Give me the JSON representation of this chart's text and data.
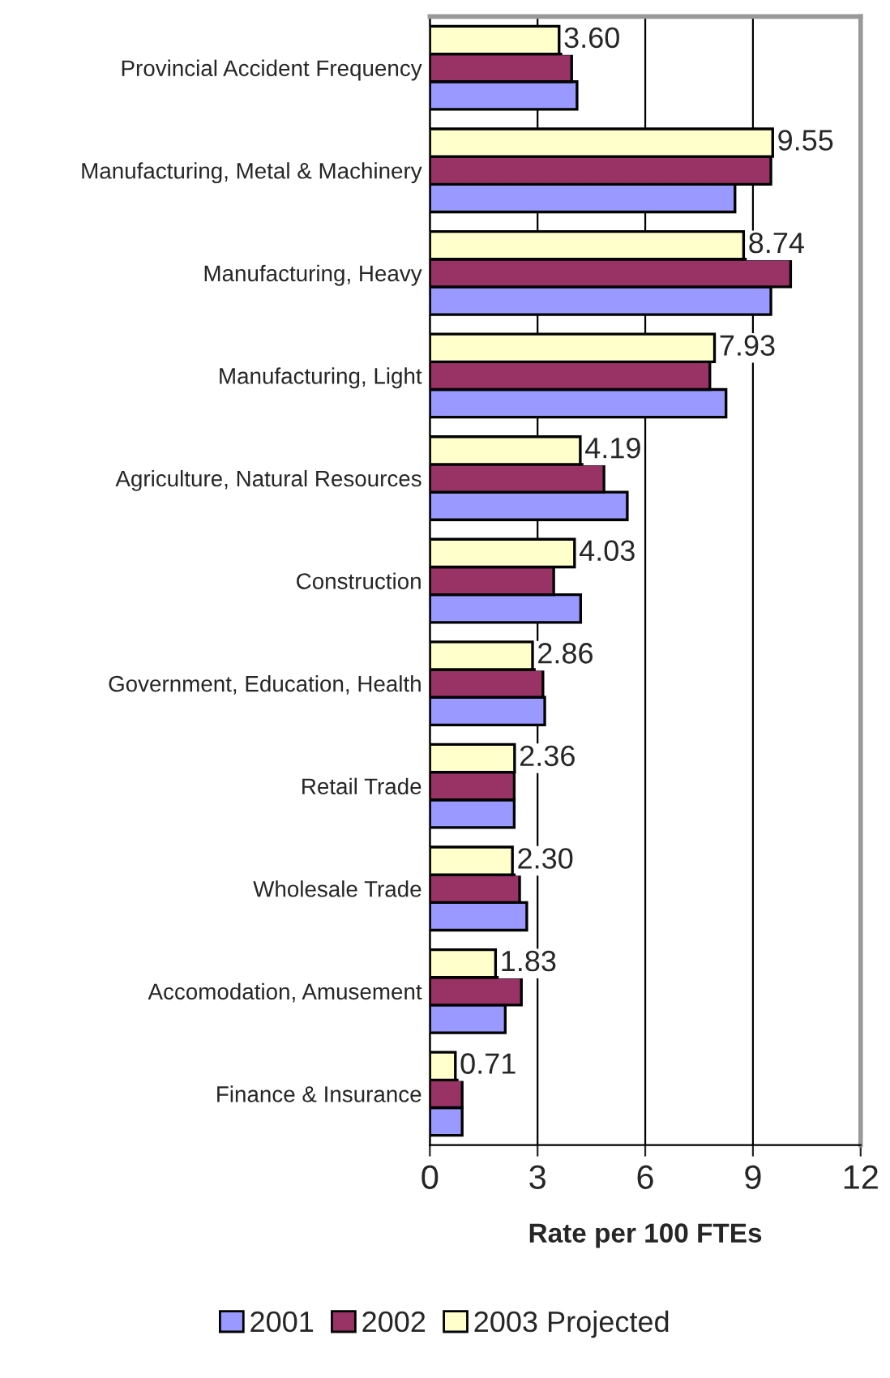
{
  "chart_data": {
    "type": "bar",
    "orientation": "horizontal",
    "xlabel": "Rate per 100 FTEs",
    "categories": [
      "Provincial Accident Frequency",
      "Manufacturing, Metal & Machinery",
      "Manufacturing, Heavy",
      "Manufacturing, Light",
      "Agriculture, Natural Resources",
      "Construction",
      "Government, Education, Health",
      "Retail Trade",
      "Wholesale Trade",
      "Accomodation, Amusement",
      "Finance & Insurance"
    ],
    "series": [
      {
        "name": "2001",
        "color": "#9999ff",
        "values": [
          4.1,
          8.5,
          9.5,
          8.25,
          5.5,
          4.2,
          3.2,
          2.35,
          2.7,
          2.1,
          0.9
        ]
      },
      {
        "name": "2002",
        "color": "#993366",
        "values": [
          3.95,
          9.5,
          10.05,
          7.8,
          4.85,
          3.45,
          3.15,
          2.35,
          2.5,
          2.55,
          0.9
        ]
      },
      {
        "name": "2003 Projected",
        "color": "#ffffcc",
        "values": [
          3.6,
          9.55,
          8.74,
          7.93,
          4.19,
          4.03,
          2.86,
          2.36,
          2.3,
          1.83,
          0.71
        ],
        "value_labels": [
          "3.60",
          "9.55",
          "8.74",
          "7.93",
          "4.19",
          "4.03",
          "2.86",
          "2.36",
          "2.30",
          "1.83",
          "0.71"
        ]
      }
    ],
    "xlim": [
      0,
      12
    ],
    "xticks": [
      0,
      3,
      6,
      9,
      12
    ],
    "grid": "x",
    "legend": "bottom"
  }
}
